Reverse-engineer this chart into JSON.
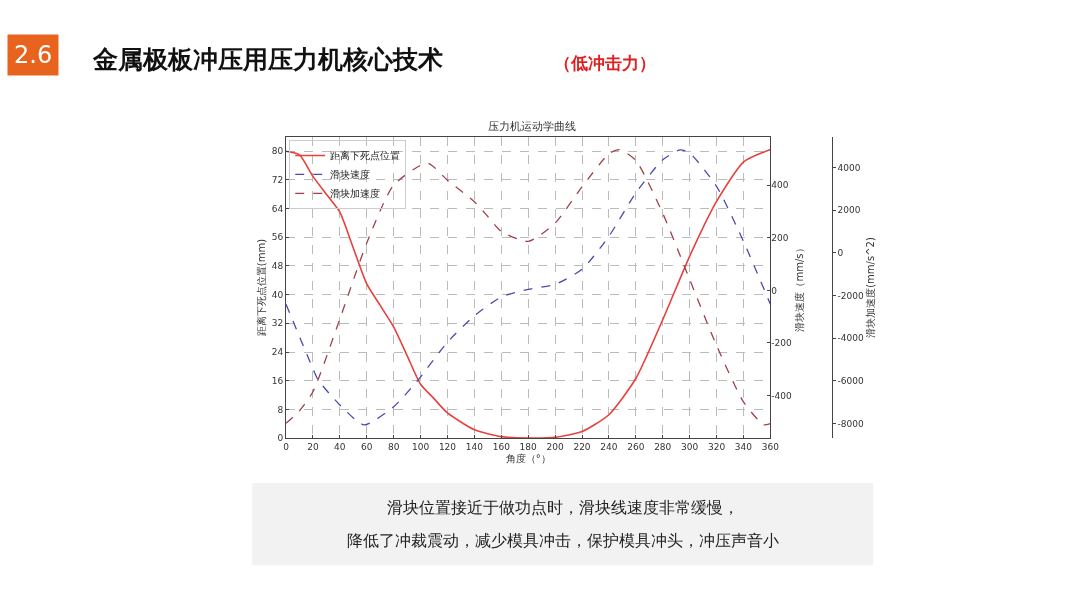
{
  "chart_data": {
    "type": "line",
    "title": "压力机运动学曲线",
    "xlabel": "角度（°）",
    "ylabel": "距离下死点位置(mm)",
    "y2label": "滑块速度（mm/s）",
    "y3label": "滑块加速度(mm/s^2)",
    "annotations": [
      "2.6",
      "金属极板冲压用压力机核心技术",
      "（低冲击力）",
      "滑块位置接近于做功点时，滑块线速度非常缓慢，",
      "降低了冲裁震动，减少模具冲击，保护模具冲头，冲压声音小"
    ],
    "xlim": [
      0,
      360
    ],
    "xticks": [
      0,
      20,
      40,
      60,
      80,
      100,
      120,
      140,
      160,
      180,
      200,
      220,
      240,
      260,
      280,
      300,
      320,
      340,
      360
    ],
    "ylim": [
      0,
      84
    ],
    "yticks": [
      0,
      8,
      16,
      24,
      32,
      40,
      48,
      56,
      64,
      72,
      80
    ],
    "y2lim": [
      -562,
      584
    ],
    "y2ticks": [
      -400,
      -200,
      0,
      200,
      400
    ],
    "y3lim": [
      -8680,
      5440
    ],
    "y3ticks": [
      -8000,
      -6000,
      -4000,
      -2000,
      0,
      2000,
      4000
    ],
    "grid": true,
    "legend": "top left",
    "series": [
      {
        "name": "距离下死点位置",
        "color": "#e8413c",
        "line_style": "solid",
        "x": [
          0,
          10,
          20,
          30,
          40,
          50,
          60,
          70,
          80,
          90,
          100,
          110,
          120,
          140,
          160,
          180,
          200,
          220,
          240,
          260,
          280,
          300,
          320,
          340,
          360
        ],
        "values": [
          80,
          79,
          73,
          68,
          63,
          53,
          43,
          37,
          31,
          23,
          15,
          11,
          7,
          2.3,
          0.4,
          0,
          0.2,
          1.8,
          6.5,
          16.6,
          33,
          50.7,
          66,
          77,
          80.5
        ]
      },
      {
        "name": "滑块速度",
        "color": "#4a4ab0",
        "line_style": "dashed",
        "axis": "y2",
        "x": [
          0,
          20,
          24,
          40,
          58,
          80,
          98,
          120,
          140,
          160,
          180,
          200,
          220,
          240,
          260,
          280,
          293,
          300,
          320,
          340,
          360
        ],
        "values": [
          -53,
          -298,
          -342,
          -436,
          -512,
          -443,
          -342,
          -197,
          -97,
          -25,
          4,
          23,
          80,
          206,
          371,
          497,
          535,
          523,
          396,
          187,
          -53
        ]
      },
      {
        "name": "滑块加速度",
        "color": "#a0404a",
        "line_style": "dashed",
        "axis": "y3",
        "x": [
          0,
          10,
          20,
          40,
          60,
          80,
          105,
          120,
          140,
          150,
          160,
          180,
          200,
          220,
          240,
          248,
          260,
          280,
          300,
          320,
          340,
          355,
          360
        ],
        "values": [
          -7990,
          -7400,
          -6510,
          -3100,
          470,
          3180,
          4220,
          3410,
          2400,
          1710,
          1010,
          540,
          1400,
          3100,
          4650,
          4840,
          4340,
          1860,
          -1240,
          -4340,
          -6980,
          -8060,
          -8000
        ]
      }
    ]
  }
}
